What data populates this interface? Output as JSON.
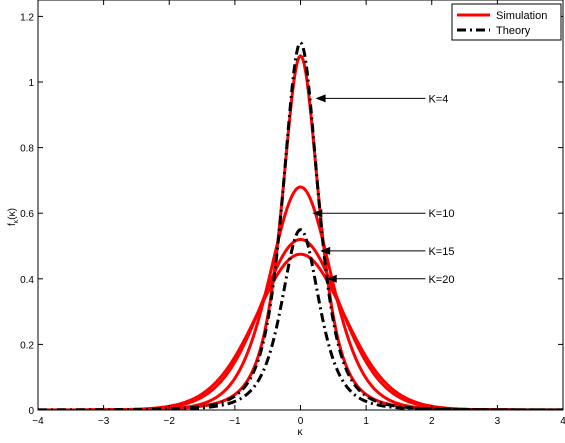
{
  "chart_data": {
    "type": "line",
    "xlabel": "κ",
    "ylabel": "f_κ(κ)",
    "ylabel_main": "f",
    "ylabel_sub": "κ",
    "ylabel_arg": "(κ)",
    "xlim": [
      -4,
      4
    ],
    "ylim": [
      0,
      1.25
    ],
    "x_ticks": [
      -4,
      -3,
      -2,
      -1,
      0,
      1,
      2,
      3,
      4
    ],
    "x_tick_labels": [
      "−4",
      "−3",
      "−2",
      "−1",
      "0",
      "1",
      "2",
      "3",
      "4"
    ],
    "y_ticks": [
      0,
      0.2,
      0.4,
      0.6,
      0.8,
      1,
      1.2
    ],
    "y_tick_labels": [
      "0",
      "0.2",
      "0.4",
      "0.6",
      "0.8",
      "1",
      "1.2"
    ],
    "grid": false,
    "legend_position": "top-right",
    "legend": [
      {
        "label": "Simulation",
        "color": "#ff0000",
        "style": "solid"
      },
      {
        "label": "Theory",
        "color": "#000000",
        "style": "dashdot"
      }
    ],
    "series": [
      {
        "name": "K=4",
        "peak": 1.08,
        "scale": 0.297,
        "shape": 3,
        "color": "#ff0000",
        "legend": "Simulation"
      },
      {
        "name": "K=10",
        "peak": 0.68,
        "scale": 0.48,
        "shape": 8,
        "color": "#ff0000",
        "legend": "Simulation"
      },
      {
        "name": "K=15",
        "peak": 0.52,
        "scale": 0.623,
        "shape": 13,
        "color": "#ff0000",
        "legend": "Simulation"
      },
      {
        "name": "K=20",
        "peak": 0.475,
        "scale": 0.68,
        "shape": 18,
        "color": "#ff0000",
        "legend": "Simulation"
      },
      {
        "name": "K=4 theory",
        "peak": 1.12,
        "scale": 0.284,
        "shape": 3,
        "color": "#000000",
        "legend": "Theory"
      },
      {
        "name": "K=15 theory",
        "peak": 0.55,
        "scale": 0.305,
        "shape": 3,
        "color": "#000000",
        "legend": "Theory"
      }
    ],
    "annotations": [
      {
        "text": "K=4",
        "label_x": 1.95,
        "label_y": 0.95,
        "arrow_x": 0.23,
        "arrow_y": 0.95
      },
      {
        "text": "K=10",
        "label_x": 1.95,
        "label_y": 0.6,
        "arrow_x": 0.18,
        "arrow_y": 0.6
      },
      {
        "text": "K=15",
        "label_x": 1.95,
        "label_y": 0.485,
        "arrow_x": 0.3,
        "arrow_y": 0.485
      },
      {
        "text": "K=20",
        "label_x": 1.95,
        "label_y": 0.4,
        "arrow_x": 0.4,
        "arrow_y": 0.4
      }
    ]
  }
}
